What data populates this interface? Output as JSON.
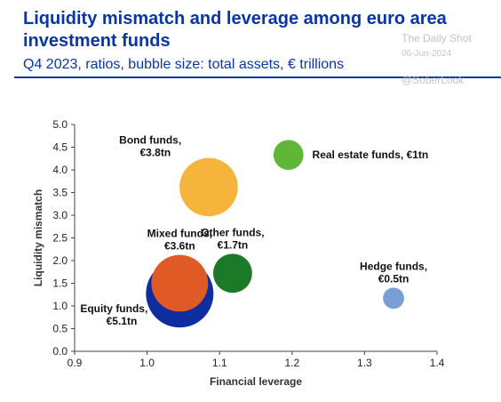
{
  "header": {
    "title": "Liquidity mismatch and leverage among euro area investment funds",
    "subtitle": "Q4 2023, ratios, bubble size: total assets, € trillions"
  },
  "watermark": {
    "source": "The Daily Shot",
    "date": "06-Jun-2024",
    "handle": "@SoberLook"
  },
  "chart_data": {
    "type": "scatter",
    "title": "Liquidity mismatch and leverage among euro area investment funds",
    "subtitle": "Q4 2023, ratios, bubble size: total assets, € trillions",
    "xlabel": "Financial leverage",
    "ylabel": "Liquidity mismatch",
    "xlim": [
      0.9,
      1.4
    ],
    "ylim": [
      0.0,
      5.0
    ],
    "xticks": [
      0.9,
      1.0,
      1.1,
      1.2,
      1.3,
      1.4
    ],
    "yticks": [
      0.0,
      0.5,
      1.0,
      1.5,
      2.0,
      2.5,
      3.0,
      3.5,
      4.0,
      4.5,
      5.0
    ],
    "grid": false,
    "legend": "none",
    "bubbles": [
      {
        "name_line1": "Equity funds,",
        "name_line2": "€5.1tn",
        "x": 1.045,
        "y": 1.27,
        "size": 5.1,
        "color": "#0e2d9e",
        "label_side": "lower-left"
      },
      {
        "name_line1": "Bond funds,",
        "name_line2": "€3.8tn",
        "x": 1.085,
        "y": 3.62,
        "size": 3.8,
        "color": "#f5b43c",
        "label_side": "upper-left"
      },
      {
        "name_line1": "Mixed funds,",
        "name_line2": "€3.6tn",
        "x": 1.045,
        "y": 1.5,
        "size": 3.6,
        "color": "#e05a26",
        "label_side": "above"
      },
      {
        "name_line1": "Other funds,",
        "name_line2": "€1.7tn",
        "x": 1.118,
        "y": 1.72,
        "size": 1.7,
        "color": "#1b7a28",
        "label_side": "above"
      },
      {
        "name_line1": "Real estate funds, €1tn",
        "name_line2": "",
        "x": 1.195,
        "y": 4.33,
        "size": 1.0,
        "color": "#5fb637",
        "label_side": "right"
      },
      {
        "name_line1": "Hedge funds,",
        "name_line2": "€0.5tn",
        "x": 1.34,
        "y": 1.17,
        "size": 0.5,
        "color": "#7a9ed6",
        "label_side": "above"
      }
    ]
  }
}
